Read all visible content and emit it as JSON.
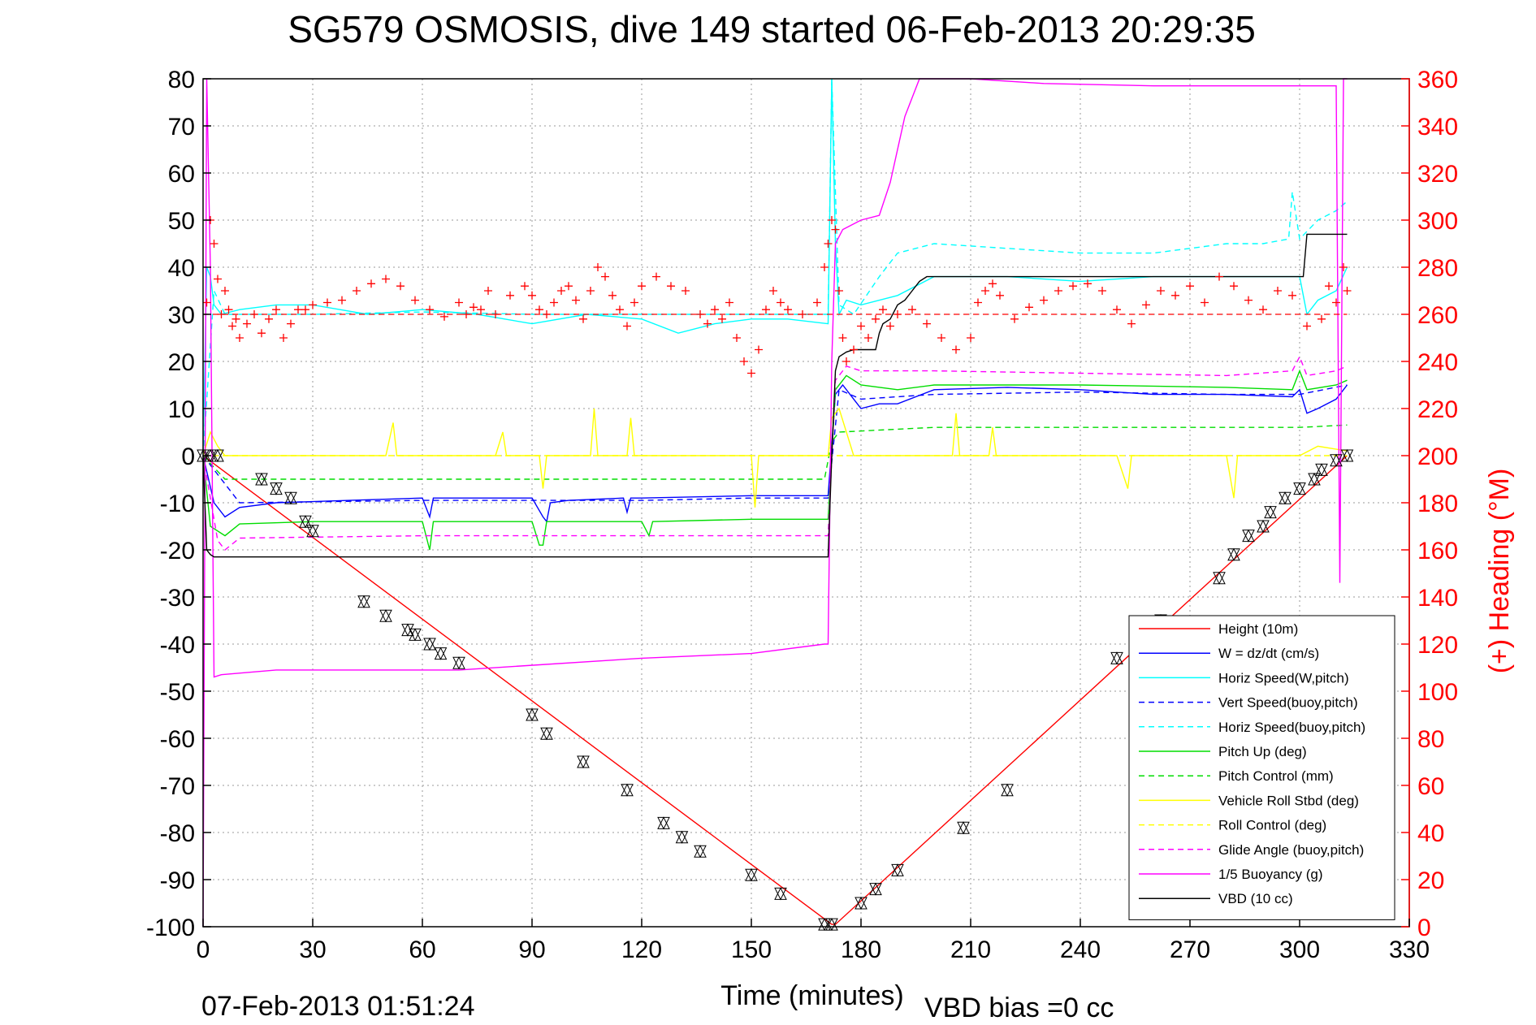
{
  "colors": {
    "height": "#ff0000",
    "w": "#0000ff",
    "horiz_w_pitch": "#00ffff",
    "vert_buoy": "#0000ff",
    "horiz_buoy": "#00ffff",
    "pitch_up": "#00dd00",
    "pitch_control": "#00dd00",
    "roll": "#ffff00",
    "roll_control": "#ffff00",
    "glide_angle": "#ff00ff",
    "buoyancy": "#ff00ff",
    "vbd": "#000000",
    "heading": "#ff0000",
    "right_axis": "#ff0000"
  },
  "chart_data": {
    "type": "line",
    "title": "SG579 OSMOSIS, dive 149 started 06-Feb-2013 20:29:35",
    "xlabel": "Time (minutes)",
    "ylabel_right": "(+) Heading (°M)",
    "footer_left": "07-Feb-2013 01:51:24",
    "footer_right": "VBD bias =0 cc",
    "xlim": [
      0,
      330
    ],
    "ylim": [
      -100,
      80
    ],
    "ylim_right": [
      0,
      360
    ],
    "xticks": [
      0,
      30,
      60,
      90,
      120,
      150,
      180,
      210,
      240,
      270,
      300,
      330
    ],
    "xtick_labels": [
      "0",
      "30",
      "60",
      "90",
      "120",
      "150",
      "180",
      "210",
      "240",
      "270",
      "300",
      "330"
    ],
    "yticks": [
      80,
      70,
      60,
      50,
      40,
      30,
      20,
      10,
      0,
      -10,
      -20,
      -30,
      -40,
      -50,
      -60,
      -70,
      -80,
      -90,
      -100
    ],
    "ytick_labels": [
      "80",
      "70",
      "60",
      "50",
      "40",
      "30",
      "20",
      "10",
      "0",
      "-10",
      "-20",
      "-30",
      "-40",
      "-50",
      "-60",
      "-70",
      "-80",
      "-90",
      "-100"
    ],
    "yticks_right": [
      360,
      340,
      320,
      300,
      280,
      260,
      240,
      220,
      200,
      180,
      160,
      140,
      120,
      100,
      80,
      60,
      40,
      20,
      0
    ],
    "ytick_labels_right": [
      "360",
      "340",
      "320",
      "300",
      "280",
      "260",
      "240",
      "220",
      "200",
      "180",
      "160",
      "140",
      "120",
      "100",
      "80",
      "60",
      "40",
      "20",
      "0"
    ],
    "grid": true,
    "legend_position": "bottom-right",
    "legend": [
      {
        "label": "Height (10m)",
        "color": "#ff0000",
        "dash": false
      },
      {
        "label": "W = dz/dt (cm/s)",
        "color": "#0000ff",
        "dash": false
      },
      {
        "label": "Horiz Speed(W,pitch)",
        "color": "#00ffff",
        "dash": false
      },
      {
        "label": "Vert Speed(buoy,pitch)",
        "color": "#0000ff",
        "dash": true
      },
      {
        "label": "Horiz Speed(buoy,pitch)",
        "color": "#00ffff",
        "dash": true
      },
      {
        "label": "Pitch Up (deg)",
        "color": "#00dd00",
        "dash": false
      },
      {
        "label": "Pitch Control (mm)",
        "color": "#00dd00",
        "dash": true
      },
      {
        "label": "Vehicle Roll Stbd (deg)",
        "color": "#ffff00",
        "dash": false
      },
      {
        "label": "Roll Control (deg)",
        "color": "#ffff00",
        "dash": true
      },
      {
        "label": "Glide Angle (buoy,pitch)",
        "color": "#ff00ff",
        "dash": true
      },
      {
        "label": "1/5 Buoyancy (g)",
        "color": "#ff00ff",
        "dash": false
      },
      {
        "label": "VBD (10 cc)",
        "color": "#000000",
        "dash": false
      }
    ],
    "series": [
      {
        "key": "height",
        "axis": "left",
        "dash": false,
        "x": [
          0,
          172,
          173,
          313
        ],
        "y": [
          0,
          -99.5,
          -99.5,
          0
        ]
      },
      {
        "key": "w",
        "axis": "left",
        "dash": false,
        "x": [
          0,
          3,
          6,
          10,
          20,
          40,
          60,
          62,
          63,
          64,
          80,
          90,
          93,
          94,
          95,
          100,
          115,
          116,
          117,
          120,
          150,
          171,
          173,
          175,
          178,
          180,
          185,
          190,
          200,
          220,
          240,
          260,
          280,
          298,
          300,
          302,
          305,
          310,
          312,
          313
        ],
        "y": [
          0,
          -10,
          -13,
          -11,
          -10,
          -9.5,
          -9,
          -13,
          -9,
          -9,
          -9,
          -9,
          -13,
          -14,
          -10,
          -9.5,
          -9,
          -12,
          -9,
          -9,
          -8.5,
          -8.5,
          13,
          15,
          12,
          10,
          11,
          11,
          14,
          14.5,
          14,
          13,
          13,
          12.5,
          14,
          9,
          10,
          12,
          14,
          15
        ]
      },
      {
        "key": "horiz_w_pitch",
        "axis": "left",
        "dash": false,
        "x": [
          0,
          1,
          2,
          3,
          5,
          10,
          20,
          30,
          45,
          60,
          75,
          90,
          105,
          120,
          130,
          140,
          150,
          160,
          171,
          172,
          173,
          174,
          176,
          180,
          190,
          200,
          220,
          240,
          260,
          280,
          300,
          302,
          305,
          310,
          313
        ],
        "y": [
          0,
          40,
          38,
          32,
          30,
          31,
          32,
          32,
          30,
          31,
          30,
          28,
          30,
          29,
          26,
          28,
          29,
          29,
          28,
          80,
          45,
          30,
          33,
          32,
          34,
          38,
          38,
          37,
          38,
          38,
          38,
          30,
          33,
          35,
          40
        ]
      },
      {
        "key": "vert_buoy",
        "axis": "left",
        "dash": true,
        "x": [
          0,
          10,
          60,
          90,
          120,
          150,
          171,
          174,
          180,
          200,
          240,
          280,
          300,
          313
        ],
        "y": [
          0,
          -10,
          -9.5,
          -9.5,
          -9.5,
          -9,
          -9,
          14,
          12,
          13,
          13.5,
          13,
          13,
          15
        ]
      },
      {
        "key": "horiz_buoy",
        "axis": "left",
        "dash": true,
        "x": [
          0,
          3,
          6,
          10,
          30,
          60,
          90,
          120,
          150,
          171,
          172,
          174,
          178,
          185,
          190,
          200,
          220,
          240,
          260,
          280,
          290,
          297,
          298,
          300,
          305,
          310,
          313
        ],
        "y": [
          0,
          35,
          30,
          30,
          30,
          30.5,
          30,
          30,
          30,
          30,
          80,
          32,
          30,
          38,
          43,
          45,
          44,
          43,
          43,
          45,
          45,
          46,
          56,
          46,
          50,
          52,
          54
        ]
      },
      {
        "key": "pitch_up",
        "axis": "left",
        "dash": false,
        "x": [
          0,
          2,
          6,
          10,
          30,
          60,
          62,
          63,
          90,
          92,
          93,
          94,
          120,
          122,
          123,
          150,
          171,
          173,
          176,
          180,
          190,
          200,
          240,
          280,
          298,
          300,
          302,
          310,
          313
        ],
        "y": [
          0,
          -15,
          -17,
          -14.5,
          -14,
          -14,
          -20,
          -14,
          -14,
          -19,
          -19,
          -14,
          -14,
          -17,
          -14,
          -13.5,
          -13.5,
          14,
          17,
          15,
          14,
          15,
          15,
          14.5,
          14,
          18,
          14,
          15,
          16
        ]
      },
      {
        "key": "pitch_control",
        "axis": "left",
        "dash": true,
        "x": [
          0,
          6,
          170,
          172,
          174,
          200,
          300,
          313
        ],
        "y": [
          0,
          -5,
          -5,
          3,
          5,
          6,
          6,
          6.5
        ]
      },
      {
        "key": "roll",
        "axis": "left",
        "dash": false,
        "x": [
          0,
          2,
          4,
          6,
          10,
          20,
          50,
          52,
          53,
          54,
          80,
          82,
          83,
          84,
          92,
          93,
          94,
          100,
          106,
          107,
          108,
          116,
          117,
          118,
          150,
          151,
          152,
          160,
          171,
          172,
          174,
          178,
          188,
          190,
          205,
          206,
          207,
          215,
          216,
          217,
          250,
          253,
          254,
          255,
          280,
          282,
          283,
          284,
          300,
          305,
          313
        ],
        "y": [
          0,
          5,
          2,
          0,
          0,
          0,
          0,
          7,
          0,
          0,
          0,
          5,
          0,
          0,
          0,
          -7,
          0,
          0,
          0,
          10,
          0,
          0,
          8,
          0,
          0,
          -11,
          0,
          0,
          0,
          8,
          10,
          0,
          0,
          0,
          0,
          9,
          0,
          0,
          6,
          0,
          0,
          -7,
          0,
          0,
          0,
          -9,
          0,
          0,
          0,
          2,
          1
        ]
      },
      {
        "key": "roll_control",
        "axis": "left",
        "dash": true,
        "x": [
          0,
          170,
          172,
          174,
          200,
          300,
          313
        ],
        "y": [
          0,
          0,
          0,
          0,
          0,
          0,
          0
        ]
      },
      {
        "key": "glide_angle",
        "axis": "left",
        "dash": true,
        "x": [
          0,
          4,
          6,
          10,
          60,
          90,
          120,
          150,
          171,
          173,
          176,
          180,
          200,
          240,
          280,
          298,
          300,
          302,
          310,
          313
        ],
        "y": [
          0,
          -18,
          -20,
          -17.5,
          -17,
          -17,
          -17,
          -17,
          -17,
          16,
          19,
          18,
          18,
          17.5,
          17,
          18,
          21,
          17,
          18,
          19
        ]
      },
      {
        "key": "buoyancy",
        "axis": "left",
        "dash": false,
        "x": [
          0,
          1,
          2,
          3,
          5,
          20,
          70,
          120,
          150,
          170,
          171,
          172,
          173,
          175,
          180,
          185,
          188,
          190,
          192,
          196,
          200,
          210,
          230,
          260,
          280,
          298,
          300,
          310,
          311,
          312,
          313
        ],
        "y": [
          -100,
          80,
          40,
          -47,
          -46.5,
          -45.5,
          -45.5,
          -43,
          -42,
          -40,
          -40,
          20,
          45,
          48,
          50,
          51,
          58,
          65,
          72,
          80,
          80,
          80,
          79,
          78.5,
          78.5,
          78.5,
          78.5,
          78.5,
          -27,
          80,
          80
        ]
      },
      {
        "key": "vbd",
        "axis": "left",
        "dash": false,
        "x": [
          0,
          1,
          2,
          3,
          171,
          172,
          173,
          174,
          176,
          178,
          180,
          182,
          184,
          185,
          186,
          188,
          190,
          192,
          194,
          196,
          198,
          300,
          301,
          302,
          312,
          313
        ],
        "y": [
          0,
          -20,
          -21,
          -21.5,
          -21.5,
          0,
          18,
          21,
          22,
          22.5,
          22.5,
          22.5,
          22.5,
          26,
          28,
          29,
          32,
          33,
          35,
          37,
          38,
          38,
          38,
          47,
          47,
          47
        ]
      }
    ],
    "heading": {
      "axis": "right",
      "target": 260,
      "x": [
        1,
        2,
        3,
        4,
        5,
        6,
        7,
        8,
        9,
        10,
        12,
        14,
        16,
        18,
        20,
        22,
        24,
        26,
        28,
        30,
        34,
        38,
        42,
        46,
        50,
        54,
        58,
        62,
        66,
        70,
        72,
        74,
        76,
        78,
        80,
        84,
        88,
        90,
        92,
        94,
        96,
        98,
        100,
        102,
        104,
        106,
        108,
        110,
        112,
        114,
        116,
        118,
        120,
        124,
        128,
        132,
        136,
        138,
        140,
        142,
        144,
        146,
        148,
        150,
        152,
        154,
        156,
        158,
        160,
        164,
        168,
        170,
        171,
        172,
        173,
        174,
        175,
        176,
        178,
        180,
        182,
        184,
        186,
        188,
        190,
        194,
        198,
        202,
        206,
        210,
        212,
        214,
        216,
        218,
        222,
        226,
        230,
        234,
        238,
        242,
        246,
        250,
        254,
        258,
        262,
        266,
        270,
        274,
        278,
        282,
        286,
        290,
        294,
        298,
        302,
        306,
        308,
        310,
        312,
        313
      ],
      "y": [
        265,
        300,
        290,
        275,
        260,
        270,
        262,
        255,
        258,
        250,
        256,
        260,
        252,
        258,
        262,
        250,
        256,
        262,
        262,
        264,
        265,
        266,
        270,
        273,
        275,
        272,
        266,
        262,
        259,
        265,
        260,
        263,
        262,
        270,
        260,
        268,
        272,
        268,
        262,
        260,
        265,
        270,
        272,
        266,
        258,
        270,
        280,
        276,
        268,
        262,
        255,
        265,
        272,
        276,
        272,
        270,
        260,
        256,
        262,
        258,
        265,
        250,
        240,
        235,
        245,
        262,
        270,
        265,
        262,
        260,
        265,
        280,
        290,
        300,
        296,
        270,
        250,
        240,
        245,
        255,
        250,
        258,
        262,
        255,
        260,
        262,
        256,
        250,
        245,
        250,
        265,
        270,
        273,
        268,
        258,
        263,
        266,
        270,
        272,
        273,
        270,
        262,
        256,
        264,
        270,
        268,
        272,
        265,
        276,
        272,
        266,
        262,
        270,
        268,
        255,
        258,
        272,
        265,
        280,
        270
      ]
    },
    "markers": {
      "x": [
        0,
        2,
        4,
        16,
        20,
        24,
        28,
        30,
        44,
        50,
        56,
        58,
        62,
        65,
        70,
        90,
        94,
        104,
        116,
        126,
        131,
        136,
        150,
        158,
        170,
        172,
        180,
        184,
        190,
        208,
        220,
        250,
        262,
        278,
        282,
        286,
        290,
        292,
        296,
        300,
        304,
        306,
        310,
        313
      ],
      "y": [
        0,
        0,
        0,
        -5,
        -7,
        -9,
        -14,
        -16,
        -31,
        -34,
        -37,
        -38,
        -40,
        -42,
        -44,
        -55,
        -59,
        -65,
        -71,
        -78,
        -81,
        -84,
        -89,
        -93,
        -99.5,
        -99.5,
        -95,
        -92,
        -88,
        -79,
        -71,
        -43,
        -35,
        -26,
        -21,
        -17,
        -15,
        -12,
        -9,
        -7,
        -5,
        -3,
        -1,
        0
      ]
    }
  }
}
